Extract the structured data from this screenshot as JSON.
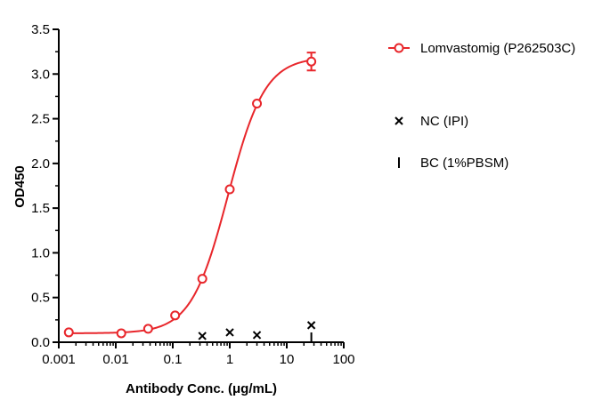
{
  "chart_data": {
    "type": "scatter",
    "xlabel": "Antibody Conc. (μg/mL)",
    "ylabel": "OD450",
    "x_scale": "log",
    "xlim": [
      0.001,
      100
    ],
    "ylim": [
      0,
      3.5
    ],
    "x_ticks": [
      0.001,
      0.01,
      0.1,
      1,
      10,
      100
    ],
    "x_tick_labels": [
      "0.001",
      "0.01",
      "0.1",
      "1",
      "10",
      "100"
    ],
    "y_ticks": [
      0,
      0.5,
      1.0,
      1.5,
      2.0,
      2.5,
      3.0,
      3.5
    ],
    "y_tick_labels": [
      "0.0",
      "0.5",
      "1.0",
      "1.5",
      "2.0",
      "2.5",
      "3.0",
      "3.5"
    ],
    "grid": false,
    "legend_position": "right",
    "series": [
      {
        "name": "Lomvastomig (P262503C)",
        "color": "#e8262b",
        "marker": "open-circle",
        "fit_curve": true,
        "points": [
          {
            "x": 0.0015,
            "y": 0.11
          },
          {
            "x": 0.0125,
            "y": 0.1
          },
          {
            "x": 0.037,
            "y": 0.15
          },
          {
            "x": 0.11,
            "y": 0.3
          },
          {
            "x": 0.33,
            "y": 0.71
          },
          {
            "x": 1.0,
            "y": 1.71
          },
          {
            "x": 3.0,
            "y": 2.67
          },
          {
            "x": 27,
            "y": 3.14,
            "err": 0.1
          }
        ]
      },
      {
        "name": "NC (IPI)",
        "color": "#000000",
        "marker": "x",
        "fit_curve": false,
        "points": [
          {
            "x": 0.33,
            "y": 0.07
          },
          {
            "x": 1.0,
            "y": 0.11
          },
          {
            "x": 3.0,
            "y": 0.08
          },
          {
            "x": 27,
            "y": 0.19
          }
        ]
      },
      {
        "name": "BC (1%PBSM)",
        "color": "#000000",
        "marker": "vbar",
        "fit_curve": false,
        "points": [
          {
            "x": 27,
            "y": 0.05
          }
        ]
      }
    ]
  }
}
